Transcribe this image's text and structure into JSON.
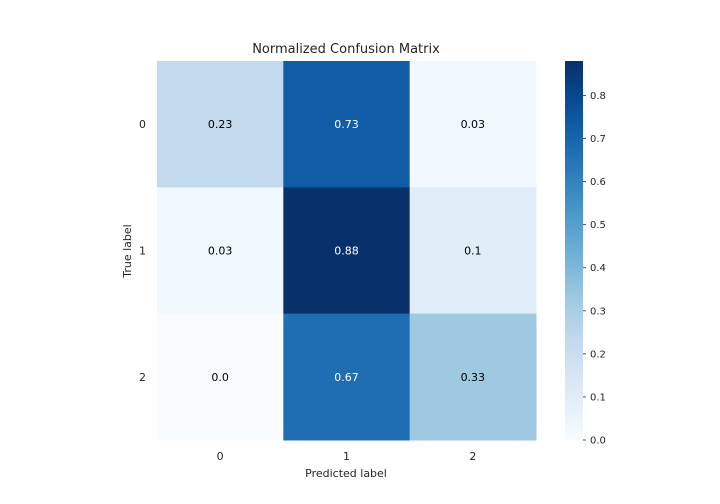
{
  "chart_data": {
    "type": "heatmap",
    "title": "Normalized Confusion Matrix",
    "xlabel": "Predicted label",
    "ylabel": "True label",
    "x_categories": [
      "0",
      "1",
      "2"
    ],
    "y_categories": [
      "0",
      "1",
      "2"
    ],
    "values": [
      [
        0.23,
        0.73,
        0.03
      ],
      [
        0.03,
        0.88,
        0.1
      ],
      [
        0.0,
        0.67,
        0.33
      ]
    ],
    "cell_labels": [
      [
        "0.23",
        "0.73",
        "0.03"
      ],
      [
        "0.03",
        "0.88",
        "0.1"
      ],
      [
        "0.0",
        "0.67",
        "0.33"
      ]
    ],
    "colormap": "Blues",
    "colorbar": {
      "vmin": 0.0,
      "vmax": 0.88,
      "ticks": [
        0.0,
        0.1,
        0.2,
        0.3,
        0.4,
        0.5,
        0.6,
        0.7,
        0.8
      ],
      "tick_labels": [
        "0.0",
        "0.1",
        "0.2",
        "0.3",
        "0.4",
        "0.5",
        "0.6",
        "0.7",
        "0.8"
      ]
    },
    "grid": false
  }
}
